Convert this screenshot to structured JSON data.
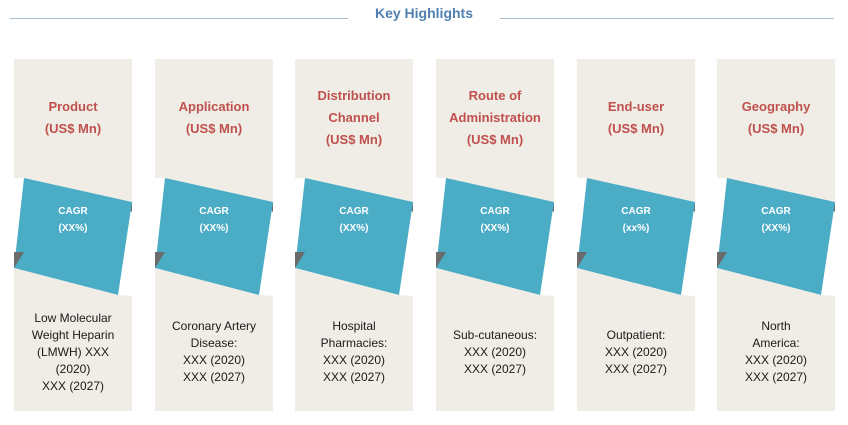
{
  "header": {
    "title": "Key Highlights"
  },
  "colors": {
    "panel": "#efede6",
    "teal": "#4bacc6",
    "fold": "#6b6b6b",
    "heading": "#c0504d",
    "title": "#4f7fb0"
  },
  "columns": [
    {
      "heading": [
        "Product",
        "(US$ Mn)"
      ],
      "cagr": [
        "CAGR",
        "(XX%)"
      ],
      "body": [
        "Low Molecular",
        "Weight Heparin",
        "(LMWH) XXX",
        "(2020)",
        "XXX (2027)"
      ]
    },
    {
      "heading": [
        "Application",
        "(US$ Mn)"
      ],
      "cagr": [
        "CAGR",
        "(XX%)"
      ],
      "body": [
        "Coronary Artery",
        "Disease:",
        "XXX (2020)",
        "XXX (2027)"
      ]
    },
    {
      "heading": [
        "Distribution",
        "Channel",
        "(US$ Mn)"
      ],
      "cagr": [
        "CAGR",
        "(XX%)"
      ],
      "body": [
        "Hospital",
        "Pharmacies:",
        "XXX (2020)",
        "XXX (2027)"
      ]
    },
    {
      "heading": [
        "Route of",
        "Administration",
        "(US$ Mn)"
      ],
      "cagr": [
        "CAGR",
        "(XX%)"
      ],
      "body": [
        "Sub-cutaneous:",
        "XXX (2020)",
        "XXX (2027)"
      ]
    },
    {
      "heading": [
        "End-user",
        "(US$ Mn)"
      ],
      "cagr": [
        "CAGR",
        "(xx%)"
      ],
      "body": [
        "Outpatient:",
        "XXX (2020)",
        "XXX (2027)"
      ]
    },
    {
      "heading": [
        "Geography",
        "(US$ Mn)"
      ],
      "cagr": [
        "CAGR",
        "(XX%)"
      ],
      "body": [
        "North",
        "America:",
        "XXX (2020)",
        "XXX (2027)"
      ]
    }
  ]
}
